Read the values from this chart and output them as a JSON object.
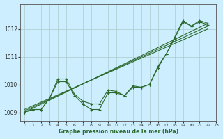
{
  "xlabel": "Graphe pression niveau de la mer (hPa)",
  "background_color": "#cceeff",
  "grid_color": "#aacccc",
  "line_color": "#2d6a2d",
  "xlim": [
    -0.5,
    23
  ],
  "ylim": [
    1008.7,
    1012.9
  ],
  "yticks": [
    1009,
    1010,
    1011,
    1012
  ],
  "xticks": [
    0,
    1,
    2,
    3,
    4,
    5,
    6,
    7,
    8,
    9,
    10,
    11,
    12,
    13,
    14,
    15,
    16,
    17,
    18,
    19,
    20,
    21,
    22,
    23
  ],
  "zigzag": [
    [
      1009.0,
      1009.1,
      1009.1,
      1009.5,
      1010.1,
      1010.1,
      1009.6,
      1009.3,
      1009.1,
      1009.1,
      1009.7,
      1009.7,
      1009.6,
      1009.9,
      1009.9,
      1010.0,
      1010.6,
      1011.1,
      1011.7,
      1012.3,
      1012.1,
      1012.3,
      1012.2
    ],
    [
      1009.0,
      1009.1,
      1009.1,
      1009.5,
      1010.2,
      1010.2,
      1009.65,
      1009.4,
      1009.3,
      1009.3,
      1009.8,
      1009.75,
      1009.6,
      1009.95,
      1009.9,
      1010.0,
      1010.65,
      1011.1,
      1011.65,
      1012.25,
      1012.1,
      1012.25,
      1012.15
    ]
  ],
  "straight": [
    [
      [
        0,
        1009.0
      ],
      [
        22,
        1012.2
      ]
    ],
    [
      [
        0,
        1009.05
      ],
      [
        22,
        1012.1
      ]
    ],
    [
      [
        0,
        1009.1
      ],
      [
        22,
        1012.0
      ]
    ]
  ],
  "marker": "+",
  "markersize": 3,
  "linewidth": 0.8
}
